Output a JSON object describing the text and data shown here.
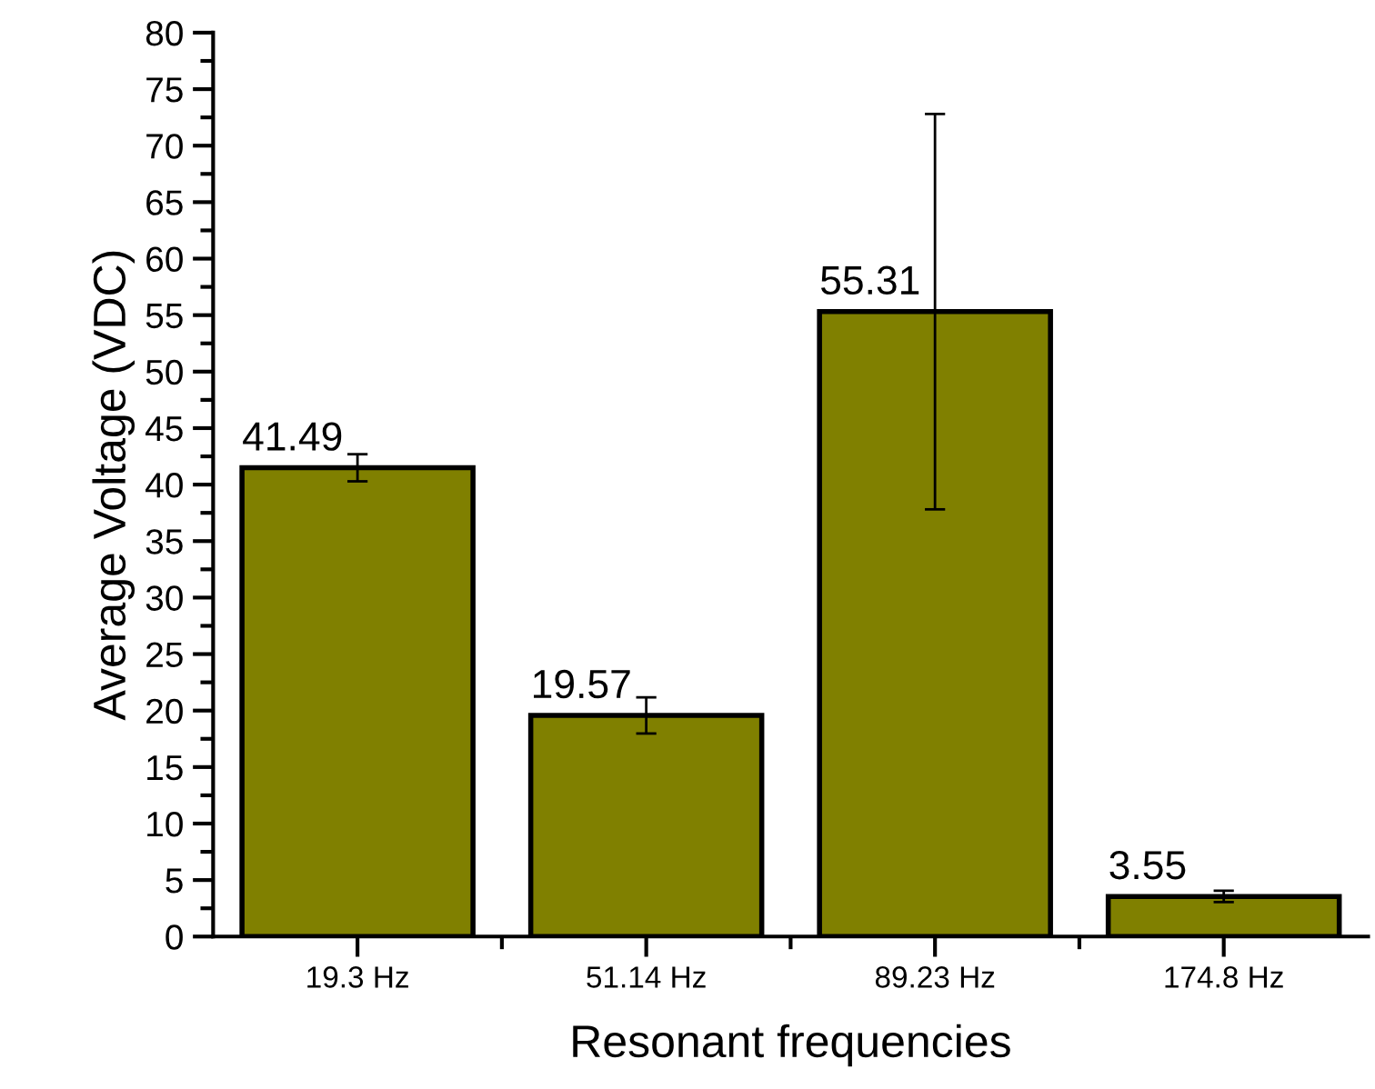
{
  "chart_data": {
    "type": "bar",
    "xlabel": "Resonant frequencies",
    "ylabel": "Average Voltage (VDC)",
    "categories": [
      "19.3 Hz",
      "51.14 Hz",
      "89.23 Hz",
      "174.8 Hz"
    ],
    "values": [
      41.49,
      19.57,
      55.31,
      3.55
    ],
    "errors": [
      1.2,
      1.6,
      17.5,
      0.5
    ],
    "color": "#808000",
    "data_labels": true,
    "ylim": [
      0,
      80
    ],
    "yticks": [
      0,
      5,
      10,
      15,
      20,
      25,
      30,
      35,
      40,
      45,
      50,
      55,
      60,
      65,
      70,
      75,
      80
    ],
    "grid": false
  }
}
